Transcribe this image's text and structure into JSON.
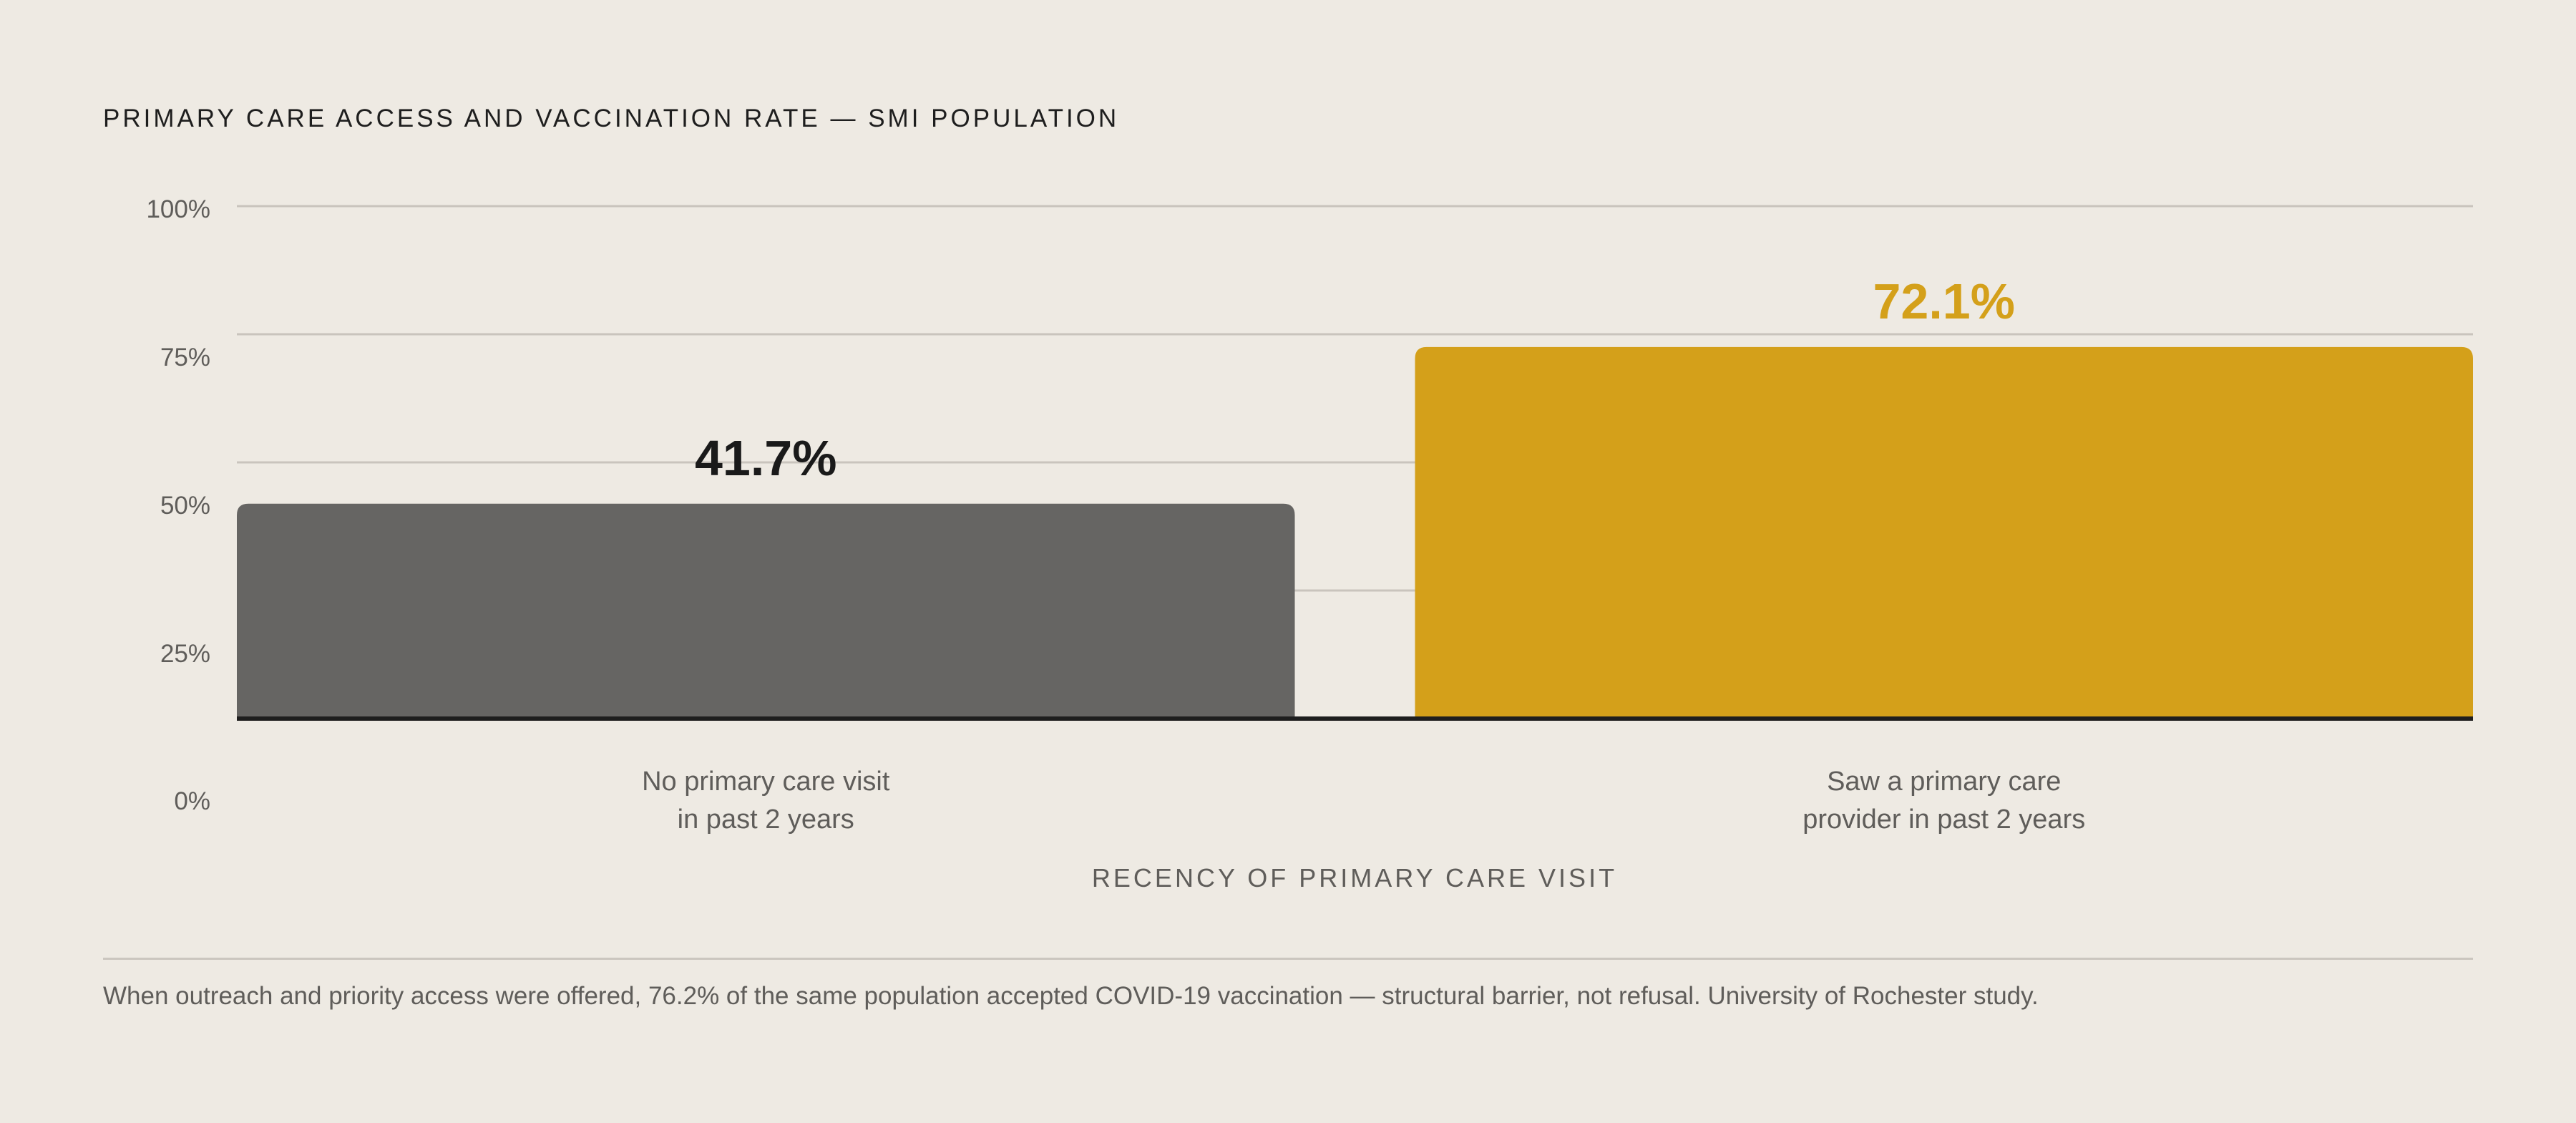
{
  "chart_data": {
    "type": "bar",
    "title": "PRIMARY CARE ACCESS AND VACCINATION RATE — SMI POPULATION",
    "xlabel": "RECENCY OF PRIMARY CARE VISIT",
    "ylabel": "",
    "ylim": [
      0,
      100
    ],
    "yticks": [
      "0%",
      "25%",
      "50%",
      "75%",
      "100%"
    ],
    "grid": true,
    "categories": [
      [
        "No primary care visit",
        "in past 2 years"
      ],
      [
        "Saw a primary care",
        "provider in past 2 years"
      ]
    ],
    "values": [
      41.7,
      72.1
    ],
    "data_labels": [
      "41.7%",
      "72.1%"
    ],
    "colors": [
      "#666563",
      "#d4a01a"
    ],
    "label_colors": [
      "#1a1a1a",
      "#d4a01a"
    ]
  },
  "footnote": "When outreach and priority access were offered, 76.2% of the same population accepted COVID-19 vaccination — structural barrier, not refusal. University of Rochester study."
}
